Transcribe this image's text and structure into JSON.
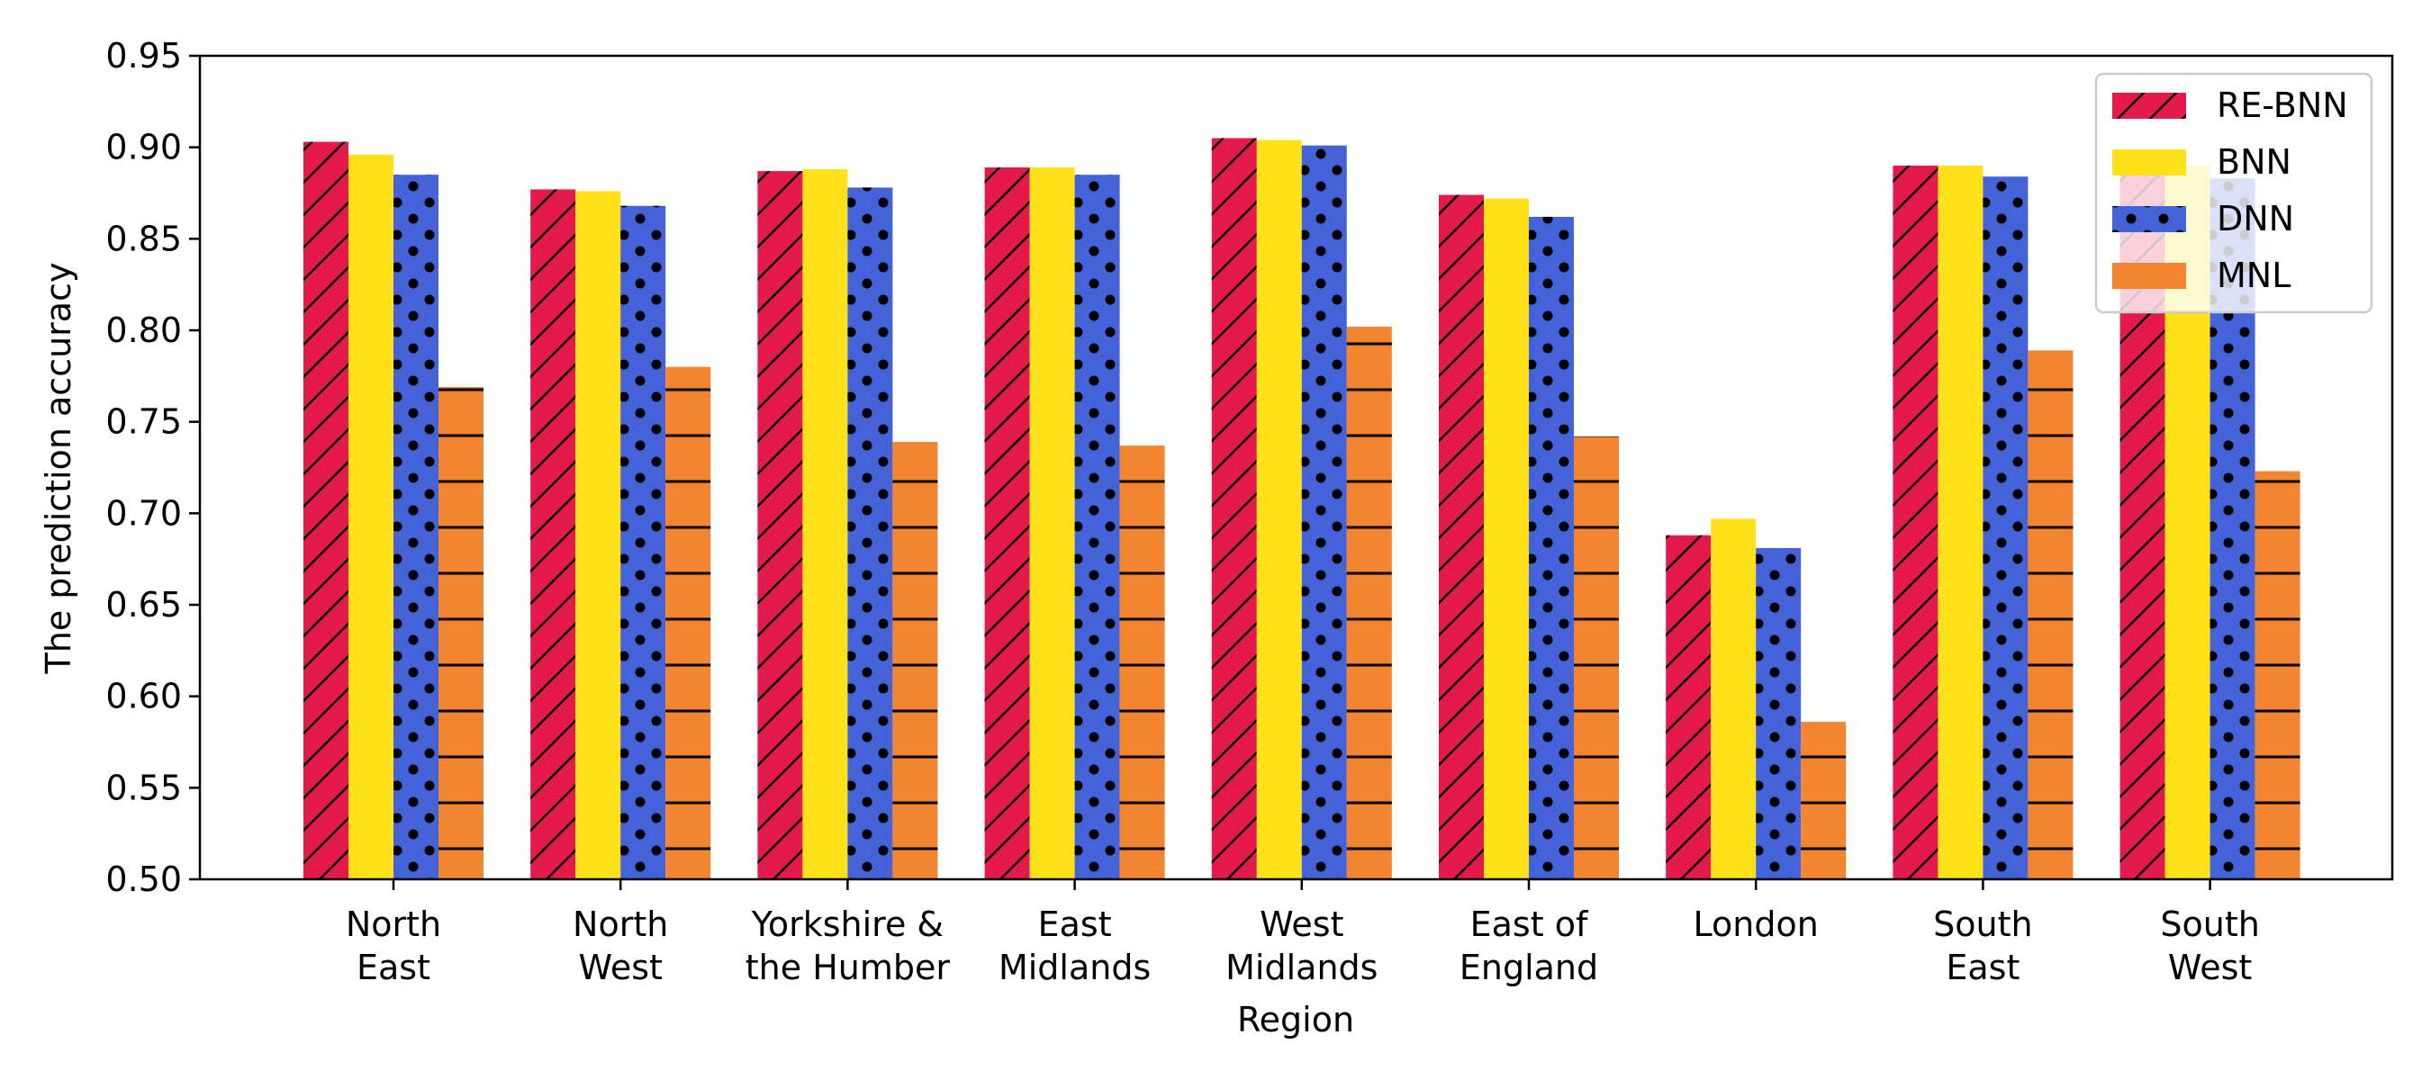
{
  "chart_data": {
    "type": "bar",
    "title": "",
    "xlabel": "Region",
    "ylabel": "The prediction accuracy",
    "ylim": [
      0.5,
      0.95
    ],
    "yticks": [
      "0.50",
      "0.55",
      "0.60",
      "0.65",
      "0.70",
      "0.75",
      "0.80",
      "0.85",
      "0.90",
      "0.95"
    ],
    "grid": false,
    "legend_position": "top-right",
    "categories": [
      [
        "North",
        "East"
      ],
      [
        "North",
        "West"
      ],
      [
        "Yorkshire &",
        "the Humber"
      ],
      [
        "East",
        "Midlands"
      ],
      [
        "West",
        "Midlands"
      ],
      [
        "East of",
        "England"
      ],
      [
        "London"
      ],
      [
        "South",
        "East"
      ],
      [
        "South",
        "West"
      ]
    ],
    "series": [
      {
        "name": "RE-BNN",
        "color": "#E31A4B",
        "pattern": "diagonal-hatch",
        "values": [
          0.903,
          0.877,
          0.887,
          0.889,
          0.905,
          0.874,
          0.688,
          0.89,
          0.89
        ]
      },
      {
        "name": "BNN",
        "color": "#FFE11A",
        "pattern": "none",
        "values": [
          0.896,
          0.876,
          0.888,
          0.889,
          0.904,
          0.872,
          0.697,
          0.89,
          0.89
        ]
      },
      {
        "name": "DNN",
        "color": "#4463D8",
        "pattern": "dots",
        "values": [
          0.885,
          0.868,
          0.878,
          0.885,
          0.901,
          0.862,
          0.681,
          0.884,
          0.883
        ]
      },
      {
        "name": "MNL",
        "color": "#F38531",
        "pattern": "horizontal-hatch",
        "values": [
          0.769,
          0.78,
          0.739,
          0.737,
          0.802,
          0.742,
          0.586,
          0.789,
          0.723
        ]
      }
    ]
  }
}
